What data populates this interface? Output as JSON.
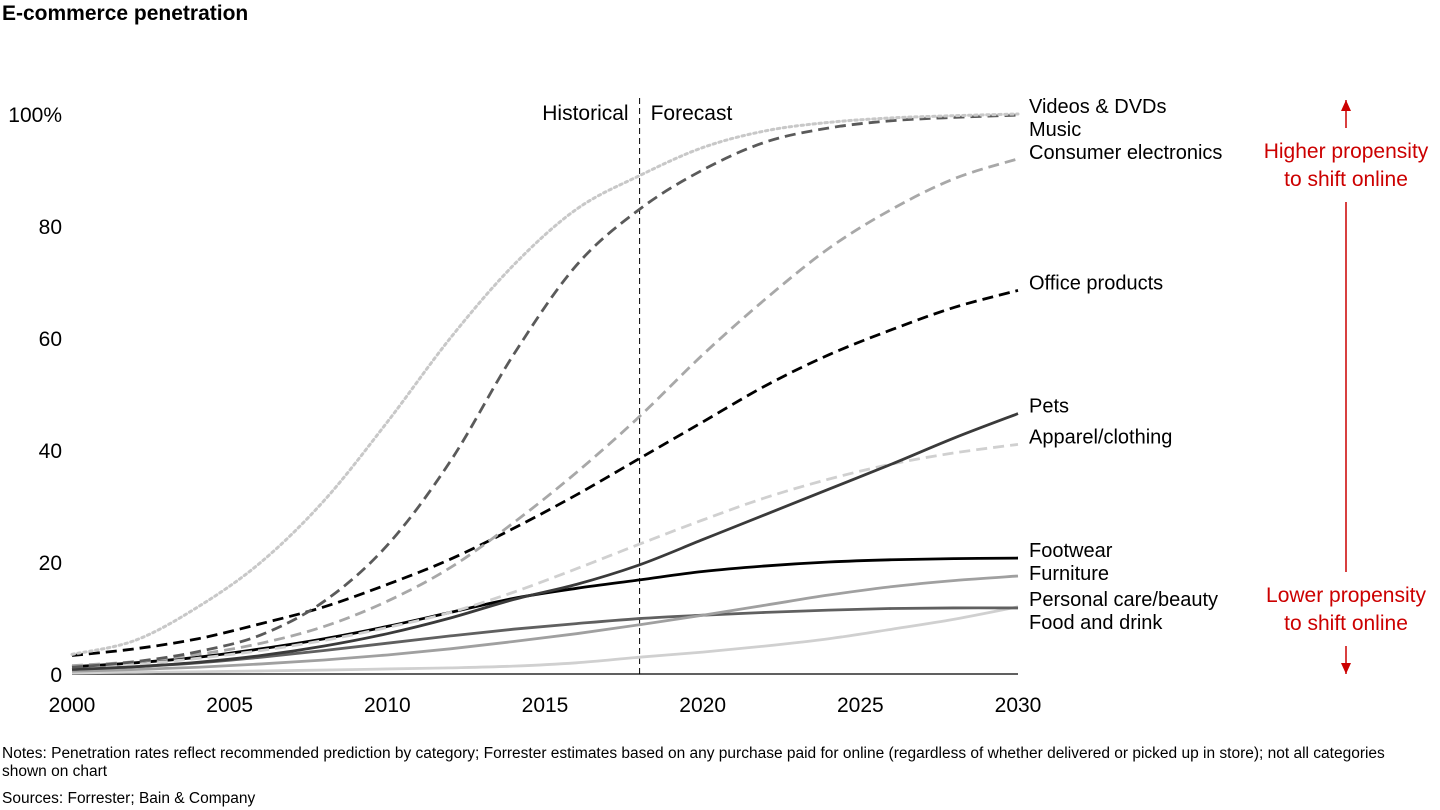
{
  "chart_data": {
    "type": "line",
    "title": "E-commerce penetration",
    "xlabel": "",
    "ylabel": "",
    "xlim": [
      2000,
      2030
    ],
    "ylim": [
      0,
      100
    ],
    "x_ticks": [
      2000,
      2005,
      2010,
      2015,
      2020,
      2025,
      2030
    ],
    "y_ticks": [
      {
        "value": 0,
        "label": "0"
      },
      {
        "value": 20,
        "label": "20"
      },
      {
        "value": 40,
        "label": "40"
      },
      {
        "value": 60,
        "label": "60"
      },
      {
        "value": 80,
        "label": "80"
      },
      {
        "value": 100,
        "label": "100%"
      }
    ],
    "divider": {
      "x": 2018,
      "left_label": "Historical",
      "right_label": "Forecast"
    },
    "x": [
      2000,
      2002,
      2004,
      2006,
      2008,
      2010,
      2012,
      2014,
      2016,
      2018,
      2020,
      2022,
      2024,
      2026,
      2028,
      2030
    ],
    "series": [
      {
        "name": "Videos & DVDs",
        "style": "dotted",
        "color": "#c8c8c8",
        "values": [
          3.5,
          6,
          12,
          20,
          31,
          45,
          60,
          73,
          83,
          89,
          94,
          97,
          98.5,
          99.3,
          99.7,
          100
        ]
      },
      {
        "name": "Music",
        "style": "dashed",
        "color": "#5a5a5a",
        "values": [
          1.2,
          2.2,
          4,
          7,
          13,
          23,
          38,
          57,
          73,
          83,
          90,
          95,
          97.5,
          98.8,
          99.4,
          99.8
        ]
      },
      {
        "name": "Consumer electronics",
        "style": "dashed",
        "color": "#a8a8a8",
        "values": [
          1.5,
          2.2,
          3.5,
          5.5,
          8.5,
          13,
          19,
          27,
          36,
          46,
          57,
          67,
          76,
          83,
          88.5,
          92
        ]
      },
      {
        "name": "Office products",
        "style": "dashed",
        "color": "#000000",
        "values": [
          3.3,
          4.5,
          6.3,
          9,
          12,
          16,
          20.5,
          26,
          32,
          38.5,
          45,
          51.5,
          57,
          61.5,
          65.5,
          68.5
        ]
      },
      {
        "name": "Pets",
        "style": "solid",
        "color": "#3a3a3a",
        "values": [
          0.8,
          1.3,
          2.1,
          3.3,
          5,
          7.2,
          10,
          13.3,
          16,
          19.5,
          24,
          28.5,
          33,
          37.5,
          42.2,
          46.5
        ]
      },
      {
        "name": "Apparel/clothing",
        "style": "dashed",
        "color": "#d0d0d0",
        "values": [
          1,
          1.7,
          2.8,
          4.2,
          6,
          8.3,
          11,
          14.6,
          18.8,
          23.2,
          27.5,
          31.5,
          34.8,
          37.5,
          39.5,
          41
        ]
      },
      {
        "name": "Footwear",
        "style": "solid",
        "color": "#000000",
        "values": [
          1.3,
          2,
          3,
          4.5,
          6.3,
          8.5,
          11,
          13.5,
          15.3,
          16.8,
          18.3,
          19.3,
          20,
          20.4,
          20.6,
          20.7
        ]
      },
      {
        "name": "Furniture",
        "style": "solid",
        "color": "#a0a0a0",
        "values": [
          0.5,
          0.8,
          1.2,
          1.8,
          2.5,
          3.4,
          4.5,
          5.8,
          7.2,
          8.8,
          10.5,
          12.3,
          14.1,
          15.6,
          16.7,
          17.5
        ]
      },
      {
        "name": "Food and drink",
        "style": "solid",
        "color": "#606060",
        "values": [
          0.8,
          1.3,
          2,
          3,
          4.2,
          5.5,
          6.8,
          8,
          9,
          9.9,
          10.5,
          11,
          11.4,
          11.7,
          11.8,
          11.8
        ]
      },
      {
        "name": "Personal care/beauty",
        "style": "solid",
        "color": "#d0d0d0",
        "values": [
          0.2,
          0.3,
          0.4,
          0.55,
          0.7,
          0.9,
          1.1,
          1.4,
          2,
          3,
          3.9,
          5,
          6.3,
          8,
          9.8,
          12
        ]
      }
    ],
    "annotations": {
      "higher": [
        "Higher propensity",
        "to shift online"
      ],
      "lower": [
        "Lower propensity",
        "to shift online"
      ],
      "color": "#cc0000"
    }
  },
  "notes": "Notes: Penetration rates reflect recommended prediction by category; Forrester estimates based on any purchase paid for online (regardless of whether delivered or picked up in store); not all categories shown on chart",
  "sources": "Sources: Forrester; Bain & Company"
}
